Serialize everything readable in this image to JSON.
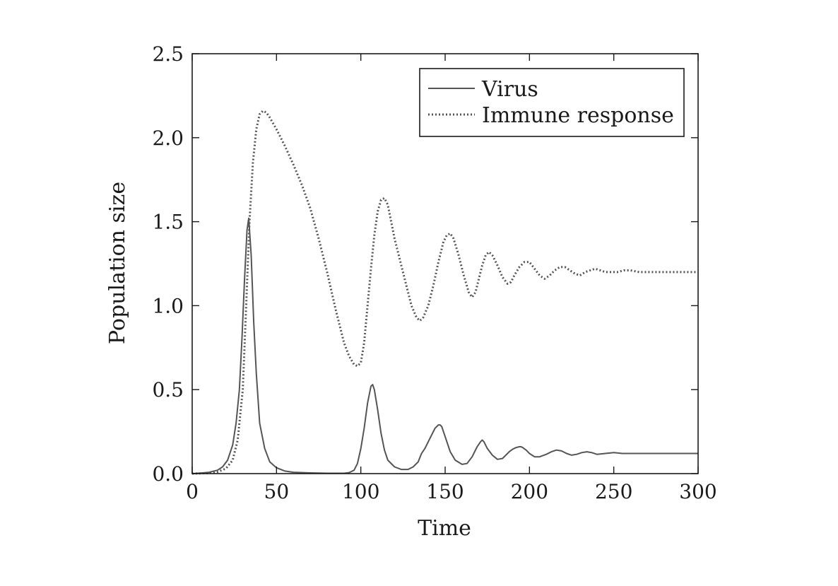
{
  "chart_data": {
    "type": "line",
    "xlabel": "Time",
    "ylabel": "Population size",
    "xlim": [
      0,
      300
    ],
    "ylim": [
      0,
      2.5
    ],
    "xticks": [
      0,
      50,
      100,
      150,
      200,
      250,
      300
    ],
    "yticks": [
      0,
      0.5,
      1,
      1.5,
      2,
      2.5
    ],
    "xtick_labels": [
      "0",
      "50",
      "100",
      "150",
      "200",
      "250",
      "300"
    ],
    "ytick_labels": [
      "0.0",
      "0.5",
      "1.0",
      "1.5",
      "2.0",
      "2.5"
    ],
    "grid": false,
    "legend": {
      "position": "top-right",
      "entries": [
        "Virus",
        "Immune response"
      ]
    },
    "series": [
      {
        "name": "Virus",
        "style": "solid",
        "color": "#555555",
        "x": [
          0,
          5,
          10,
          15,
          18,
          21,
          24,
          26,
          28,
          29.5,
          31,
          32.5,
          33.5,
          35,
          36.5,
          38,
          40,
          43,
          46,
          50,
          55,
          60,
          70,
          80,
          90,
          93,
          96,
          98,
          100,
          102,
          104,
          106,
          107,
          108,
          110,
          112,
          114,
          116,
          120,
          124,
          128,
          131,
          134,
          136,
          138,
          141,
          144,
          146,
          147,
          148,
          150,
          153,
          156,
          160,
          163,
          166,
          169,
          171,
          172,
          173,
          175,
          178,
          181,
          184,
          186,
          188,
          190,
          192,
          194,
          195,
          196,
          198,
          200,
          203,
          206,
          210,
          213,
          216,
          219,
          222,
          225,
          228,
          231,
          234,
          237,
          240,
          245,
          250,
          255,
          260,
          270,
          280,
          290,
          300
        ],
        "y": [
          0,
          0.003,
          0.008,
          0.02,
          0.04,
          0.08,
          0.17,
          0.3,
          0.5,
          0.8,
          1.15,
          1.45,
          1.52,
          1.3,
          0.9,
          0.6,
          0.3,
          0.15,
          0.07,
          0.035,
          0.015,
          0.008,
          0.004,
          0.002,
          0.002,
          0.006,
          0.02,
          0.06,
          0.15,
          0.27,
          0.42,
          0.52,
          0.53,
          0.5,
          0.38,
          0.24,
          0.14,
          0.08,
          0.04,
          0.025,
          0.025,
          0.04,
          0.07,
          0.12,
          0.15,
          0.21,
          0.27,
          0.29,
          0.29,
          0.28,
          0.22,
          0.13,
          0.08,
          0.055,
          0.06,
          0.1,
          0.16,
          0.19,
          0.2,
          0.19,
          0.15,
          0.11,
          0.085,
          0.09,
          0.11,
          0.13,
          0.145,
          0.155,
          0.16,
          0.16,
          0.155,
          0.14,
          0.12,
          0.1,
          0.1,
          0.115,
          0.13,
          0.14,
          0.135,
          0.12,
          0.11,
          0.115,
          0.125,
          0.13,
          0.125,
          0.115,
          0.12,
          0.125,
          0.12,
          0.12,
          0.12,
          0.12,
          0.12,
          0.12
        ]
      },
      {
        "name": "Immune response",
        "style": "dotted",
        "color": "#555555",
        "x": [
          0,
          10,
          15,
          20,
          24,
          27,
          30,
          32,
          34,
          36,
          38,
          40,
          42,
          44,
          46,
          50,
          55,
          60,
          65,
          70,
          75,
          80,
          85,
          90,
          93,
          96,
          98,
          100,
          102,
          104,
          106,
          108,
          110,
          112,
          114,
          116,
          118,
          120,
          125,
          130,
          133,
          135,
          137,
          140,
          143,
          146,
          149,
          151,
          153,
          155,
          158,
          161,
          164,
          166,
          168,
          170,
          172,
          174,
          176,
          178,
          181,
          184,
          187,
          189,
          191,
          194,
          197,
          200,
          203,
          206,
          209,
          212,
          215,
          218,
          221,
          224,
          227,
          230,
          233,
          236,
          239,
          242,
          245,
          248,
          252,
          256,
          260,
          265,
          270,
          280,
          290,
          300
        ],
        "y": [
          0,
          0.003,
          0.01,
          0.03,
          0.08,
          0.2,
          0.5,
          1,
          1.5,
          1.85,
          2.05,
          2.14,
          2.16,
          2.15,
          2.12,
          2.05,
          1.95,
          1.84,
          1.72,
          1.58,
          1.4,
          1.2,
          0.98,
          0.78,
          0.7,
          0.65,
          0.64,
          0.66,
          0.78,
          1,
          1.22,
          1.42,
          1.56,
          1.63,
          1.64,
          1.6,
          1.5,
          1.4,
          1.2,
          1,
          0.93,
          0.91,
          0.93,
          1,
          1.12,
          1.26,
          1.38,
          1.42,
          1.43,
          1.4,
          1.3,
          1.18,
          1.08,
          1.05,
          1.08,
          1.16,
          1.24,
          1.3,
          1.32,
          1.3,
          1.24,
          1.17,
          1.13,
          1.14,
          1.18,
          1.23,
          1.26,
          1.26,
          1.22,
          1.18,
          1.16,
          1.18,
          1.21,
          1.23,
          1.23,
          1.21,
          1.19,
          1.18,
          1.2,
          1.21,
          1.22,
          1.21,
          1.2,
          1.2,
          1.2,
          1.21,
          1.21,
          1.2,
          1.2,
          1.2,
          1.2,
          1.2
        ]
      }
    ]
  }
}
